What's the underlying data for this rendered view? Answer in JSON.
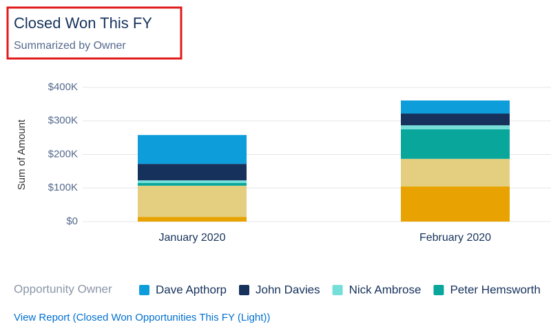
{
  "chart_data": {
    "type": "stacked_bar",
    "title": "Closed Won This FY",
    "subtitle": "Summarized by Owner",
    "ylabel": "Sum of Amount",
    "legend_title": "Opportunity Owner",
    "footer": "View Report (Closed Won Opportunities This FY (Light))",
    "categories": [
      "January 2020",
      "February 2020"
    ],
    "series": [
      {
        "name": "Dave Apthorp",
        "color": "#0d9dda",
        "values": [
          86000,
          39000
        ]
      },
      {
        "name": "John Davies",
        "color": "#16325c",
        "values": [
          49000,
          35000
        ]
      },
      {
        "name": "Nick Ambrose",
        "color": "#76ded9",
        "values": [
          8000,
          12000
        ]
      },
      {
        "name": "Peter Hemsworth",
        "color": "#08a69b",
        "values": [
          8000,
          88000
        ]
      },
      {
        "color": "#e3cf7f",
        "values": [
          93000,
          82000
        ]
      },
      {
        "color": "#e8a202",
        "values": [
          14000,
          105000
        ]
      }
    ],
    "ylim": [
      0,
      400000
    ],
    "yticks": [
      {
        "value": 0,
        "label": "$0"
      },
      {
        "value": 100000,
        "label": "$100K"
      },
      {
        "value": 200000,
        "label": "$200K"
      },
      {
        "value": 300000,
        "label": "$300K"
      },
      {
        "value": 400000,
        "label": "$400K"
      }
    ],
    "grid": true
  }
}
